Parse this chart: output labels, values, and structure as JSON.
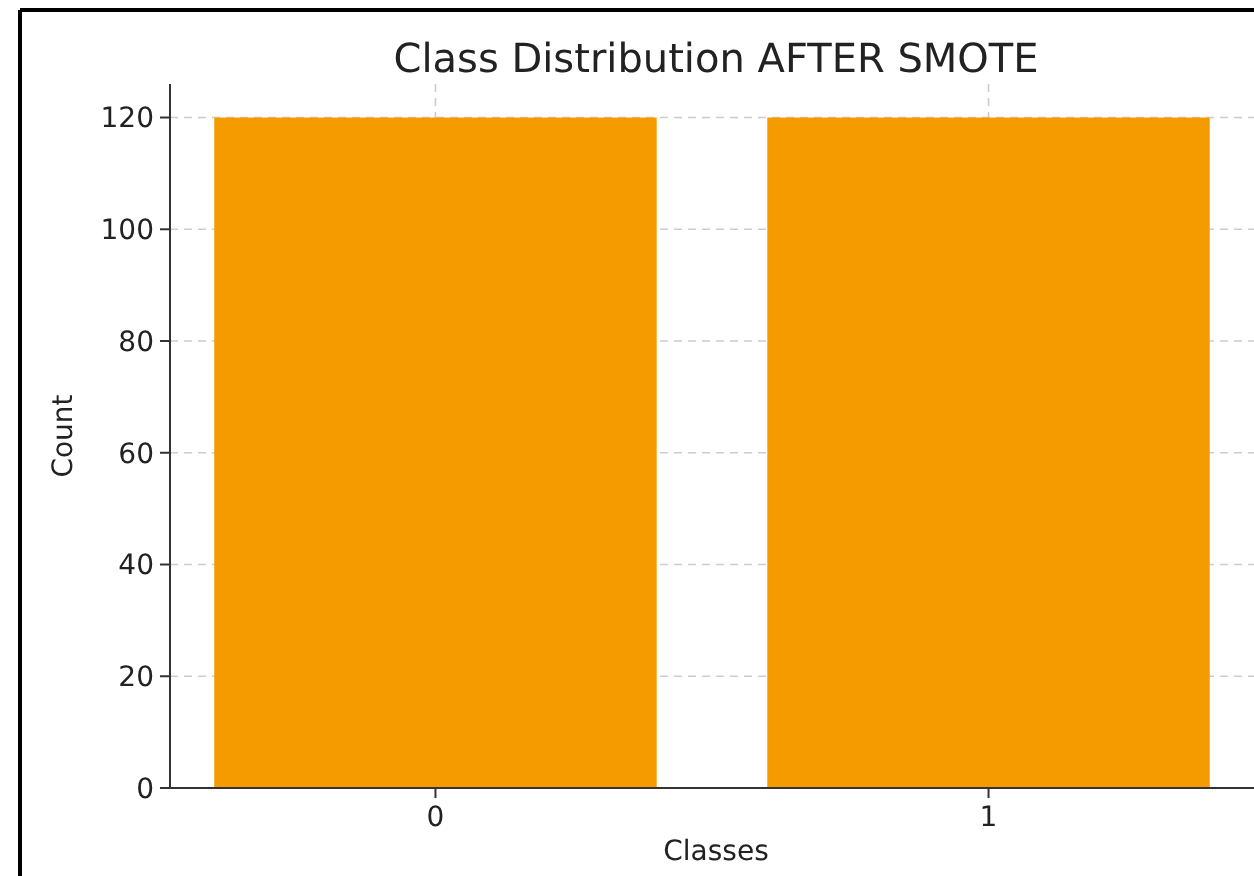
{
  "chart_data": {
    "type": "bar",
    "title": "Class Distribution AFTER SMOTE",
    "xlabel": "Classes",
    "ylabel": "Count",
    "categories": [
      "0",
      "1"
    ],
    "values": [
      120,
      120
    ],
    "color": "#f59b00",
    "ylim": [
      0,
      126
    ],
    "yticks": [
      0,
      20,
      40,
      60,
      80,
      100,
      120
    ],
    "grid": true
  }
}
